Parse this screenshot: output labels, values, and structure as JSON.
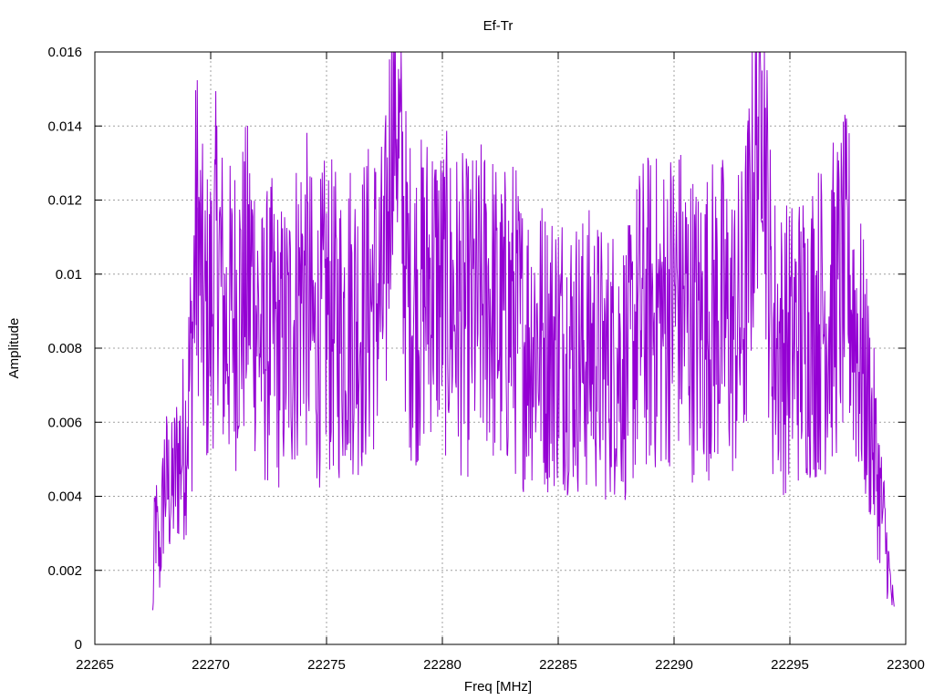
{
  "chart_data": {
    "type": "line",
    "title": "Ef-Tr",
    "xlabel": "Freq [MHz]",
    "ylabel": "Amplitude",
    "xlim": [
      22265,
      22300
    ],
    "ylim": [
      0,
      0.016
    ],
    "x_ticks": [
      "22265",
      "22270",
      "22275",
      "22280",
      "22285",
      "22290",
      "22295",
      "22300"
    ],
    "y_ticks": [
      "0",
      "0.002",
      "0.004",
      "0.006",
      "0.008",
      "0.01",
      "0.012",
      "0.014",
      "0.016"
    ],
    "grid": true,
    "series": [
      {
        "color": "#9400d3",
        "x_start": 22267.5,
        "x_end": 22299.5,
        "points": [
          [
            22267.5,
            0.0008
          ],
          [
            22267.6,
            0.0035
          ],
          [
            22267.8,
            0.0022
          ],
          [
            22268.0,
            0.0045
          ],
          [
            22268.3,
            0.004
          ],
          [
            22268.6,
            0.005
          ],
          [
            22268.9,
            0.0055
          ],
          [
            22269.2,
            0.008
          ],
          [
            22269.4,
            0.0118
          ],
          [
            22269.7,
            0.0085
          ],
          [
            22270.0,
            0.009
          ],
          [
            22270.3,
            0.011
          ],
          [
            22270.6,
            0.0085
          ],
          [
            22271.0,
            0.009
          ],
          [
            22271.4,
            0.0095
          ],
          [
            22271.8,
            0.01
          ],
          [
            22272.2,
            0.008
          ],
          [
            22272.6,
            0.0085
          ],
          [
            22273.0,
            0.008
          ],
          [
            22273.5,
            0.0085
          ],
          [
            22274.0,
            0.01
          ],
          [
            22274.5,
            0.008
          ],
          [
            22275.0,
            0.009
          ],
          [
            22275.5,
            0.0085
          ],
          [
            22276.0,
            0.009
          ],
          [
            22276.5,
            0.0088
          ],
          [
            22277.0,
            0.0095
          ],
          [
            22277.5,
            0.0092
          ],
          [
            22277.9,
            0.0157
          ],
          [
            22278.5,
            0.0095
          ],
          [
            22279.0,
            0.0092
          ],
          [
            22279.5,
            0.01
          ],
          [
            22280.0,
            0.0095
          ],
          [
            22280.5,
            0.0092
          ],
          [
            22281.0,
            0.0088
          ],
          [
            22281.5,
            0.009
          ],
          [
            22282.0,
            0.0095
          ],
          [
            22282.5,
            0.0085
          ],
          [
            22283.0,
            0.009
          ],
          [
            22283.5,
            0.0082
          ],
          [
            22284.0,
            0.0085
          ],
          [
            22284.5,
            0.008
          ],
          [
            22285.0,
            0.0082
          ],
          [
            22285.5,
            0.008
          ],
          [
            22286.0,
            0.0078
          ],
          [
            22286.5,
            0.008
          ],
          [
            22287.0,
            0.0075
          ],
          [
            22287.5,
            0.0078
          ],
          [
            22288.0,
            0.0075
          ],
          [
            22288.5,
            0.0088
          ],
          [
            22289.0,
            0.009
          ],
          [
            22289.5,
            0.0088
          ],
          [
            22290.0,
            0.0095
          ],
          [
            22290.5,
            0.009
          ],
          [
            22291.0,
            0.0085
          ],
          [
            22291.5,
            0.0088
          ],
          [
            22292.0,
            0.009
          ],
          [
            22292.5,
            0.0085
          ],
          [
            22293.0,
            0.0088
          ],
          [
            22293.8,
            0.0155
          ],
          [
            22294.2,
            0.0085
          ],
          [
            22294.7,
            0.008
          ],
          [
            22295.2,
            0.0082
          ],
          [
            22295.7,
            0.0085
          ],
          [
            22296.2,
            0.0088
          ],
          [
            22296.7,
            0.009
          ],
          [
            22297.1,
            0.0095
          ],
          [
            22297.5,
            0.01
          ],
          [
            22298.0,
            0.008
          ],
          [
            22298.4,
            0.0065
          ],
          [
            22298.8,
            0.0045
          ],
          [
            22299.1,
            0.003
          ],
          [
            22299.3,
            0.0018
          ],
          [
            22299.5,
            0.0008
          ]
        ]
      }
    ]
  }
}
